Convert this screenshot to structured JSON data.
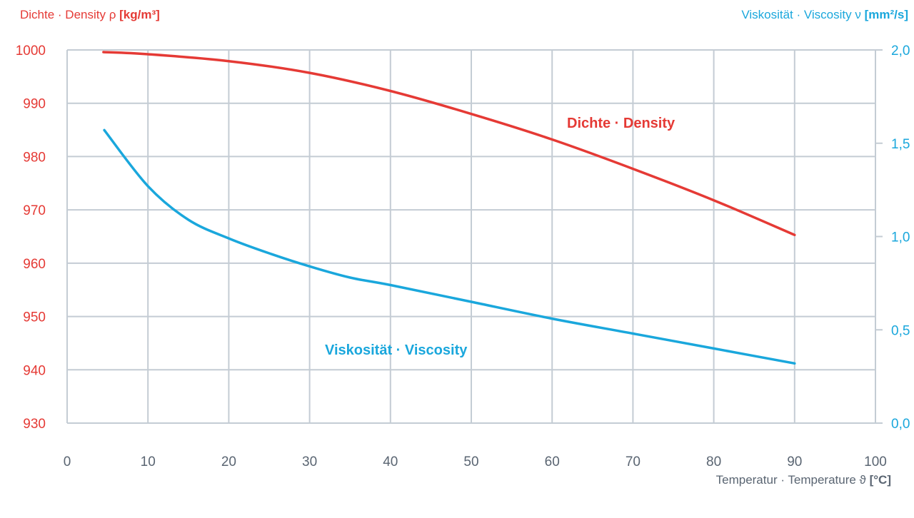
{
  "chart_data": {
    "type": "line",
    "title": "",
    "xlabel": {
      "text": "Temperatur · Temperature ϑ ",
      "unit": "[°C]"
    },
    "ylabel_left": {
      "text": "Dichte · Density ρ ",
      "unit": "[kg/m³]"
    },
    "ylabel_right": {
      "text": "Viskosität · Viscosity ν ",
      "unit": "[mm²/s]"
    },
    "xlim": [
      0,
      100
    ],
    "ylim_left": [
      930,
      1000
    ],
    "ylim_right": [
      0.0,
      2.0
    ],
    "x_ticks": [
      "0",
      "10",
      "20",
      "30",
      "40",
      "50",
      "60",
      "70",
      "80",
      "90",
      "100"
    ],
    "y_ticks_left": [
      "930",
      "940",
      "950",
      "960",
      "970",
      "980",
      "990",
      "1000"
    ],
    "y_ticks_right": [
      "0,0",
      "0,5",
      "1,0",
      "1,5",
      "2,0"
    ],
    "grid": true,
    "colors": {
      "density": "#e53a35",
      "viscosity": "#1aa7dc",
      "grid": "#c4ccd4",
      "x_axis_text": "#5a6572"
    },
    "series": [
      {
        "name": "Dichte · Density",
        "axis": "left",
        "x": [
          4.5,
          10,
          20,
          30,
          40,
          50,
          60,
          70,
          80,
          90
        ],
        "values": [
          999.6,
          999.2,
          997.9,
          995.7,
          992.3,
          988.0,
          983.2,
          977.7,
          971.8,
          965.3
        ]
      },
      {
        "name": "Viskosität · Viscosity",
        "axis": "right",
        "x": [
          4.6,
          10,
          15,
          20,
          25,
          30,
          35,
          40,
          50,
          60,
          70,
          80,
          90
        ],
        "values": [
          1.57,
          1.27,
          1.09,
          0.99,
          0.91,
          0.84,
          0.78,
          0.74,
          0.65,
          0.56,
          0.48,
          0.4,
          0.32
        ]
      }
    ]
  }
}
